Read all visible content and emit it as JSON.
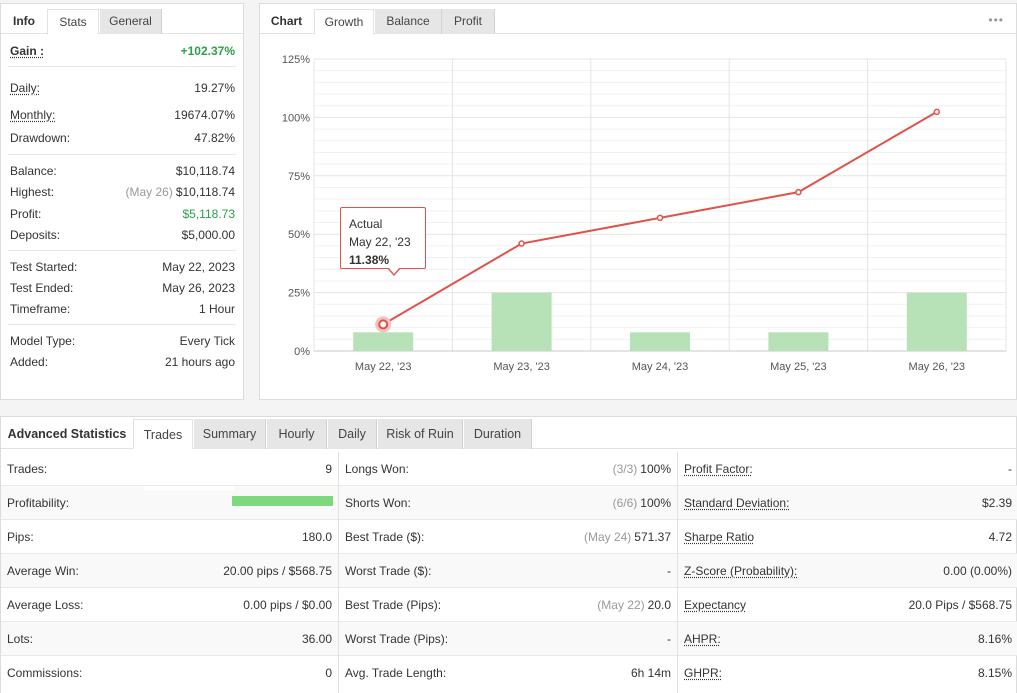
{
  "left_panel": {
    "tabs": [
      "Info",
      "Stats",
      "General"
    ],
    "active_tab": "Stats",
    "rows": [
      {
        "label": "Gain :",
        "value": "+102.37%"
      },
      {
        "label": "Daily:",
        "value": "19.27%"
      },
      {
        "label": "Monthly:",
        "value": "19674.07%"
      },
      {
        "label": "Drawdown:",
        "value": "47.82%"
      },
      {
        "label": "Balance:",
        "value": "$10,118.74"
      },
      {
        "label": "Highest:",
        "note": "(May 26)",
        "value": "$10,118.74"
      },
      {
        "label": "Profit:",
        "value": "$5,118.73"
      },
      {
        "label": "Deposits:",
        "value": "$5,000.00"
      },
      {
        "label": "Test Started:",
        "value": "May 22, 2023"
      },
      {
        "label": "Test Ended:",
        "value": "May 26, 2023"
      },
      {
        "label": "Timeframe:",
        "value": "1 Hour"
      },
      {
        "label": "Model Type:",
        "value": "Every Tick"
      },
      {
        "label": "Added:",
        "value": "21 hours ago"
      }
    ]
  },
  "chart_panel": {
    "tabs": [
      "Chart",
      "Growth",
      "Balance",
      "Profit"
    ],
    "active_tab": "Growth",
    "more_icon": "•••",
    "tooltip": {
      "title": "Actual",
      "date": "May 22, '23",
      "value": "11.38%"
    }
  },
  "chart_data": {
    "type": "bar",
    "categories": [
      "May 22, '23",
      "May 23, '23",
      "May 24, '23",
      "May 25, '23",
      "May 26, '23"
    ],
    "y_ticks": [
      "125%",
      "100%",
      "75%",
      "50%",
      "25%",
      "0%"
    ],
    "ylim": [
      0,
      125
    ],
    "grid": true,
    "series": [
      {
        "type": "bar",
        "values": [
          8,
          25,
          8,
          8,
          25
        ],
        "color": "#b7e1b7"
      },
      {
        "type": "line",
        "values": [
          11.38,
          46,
          57,
          68,
          102.37
        ],
        "color": "#e0524a"
      }
    ]
  },
  "advanced": {
    "title": "Advanced Statistics",
    "tabs": [
      "Trades",
      "Summary",
      "Hourly",
      "Daily",
      "Risk of Ruin",
      "Duration"
    ],
    "active_tab": "Trades",
    "col1": [
      {
        "label": "Trades:",
        "value": "9"
      },
      {
        "label": "Profitability:",
        "value": ""
      },
      {
        "label": "Pips:",
        "value": "180.0"
      },
      {
        "label": "Average Win:",
        "value": "20.00 pips / $568.75"
      },
      {
        "label": "Average Loss:",
        "value": "0.00 pips / $0.00"
      },
      {
        "label": "Lots:",
        "value": "36.00"
      },
      {
        "label": "Commissions:",
        "value": "0"
      }
    ],
    "col2": [
      {
        "label": "Longs Won:",
        "note": "(3/3)",
        "value": "100%"
      },
      {
        "label": "Shorts Won:",
        "note": "(6/6)",
        "value": "100%"
      },
      {
        "label": "Best Trade ($):",
        "note": "(May 24)",
        "value": "571.37"
      },
      {
        "label": "Worst Trade ($):",
        "note": "",
        "value": "-"
      },
      {
        "label": "Best Trade (Pips):",
        "note": "(May 22)",
        "value": "20.0"
      },
      {
        "label": "Worst Trade (Pips):",
        "note": "",
        "value": "-"
      },
      {
        "label": "Avg. Trade Length:",
        "note": "",
        "value": "6h 14m"
      }
    ],
    "col3": [
      {
        "label": "Profit Factor:",
        "value": "-"
      },
      {
        "label": "Standard Deviation:",
        "value": "$2.39"
      },
      {
        "label": "Sharpe Ratio",
        "value": "4.72"
      },
      {
        "label": "Z-Score (Probability):",
        "value": "0.00 (0.00%)"
      },
      {
        "label": "Expectancy",
        "value": "20.0 Pips / $568.75"
      },
      {
        "label": "AHPR:",
        "value": "8.16%"
      },
      {
        "label": "GHPR:",
        "value": "8.15%"
      }
    ],
    "profitability_fraction": 1.0
  },
  "colors": {
    "accent_green": "#2aa14a",
    "line_red": "#e0524a",
    "bar_green": "#b7e1b7"
  }
}
